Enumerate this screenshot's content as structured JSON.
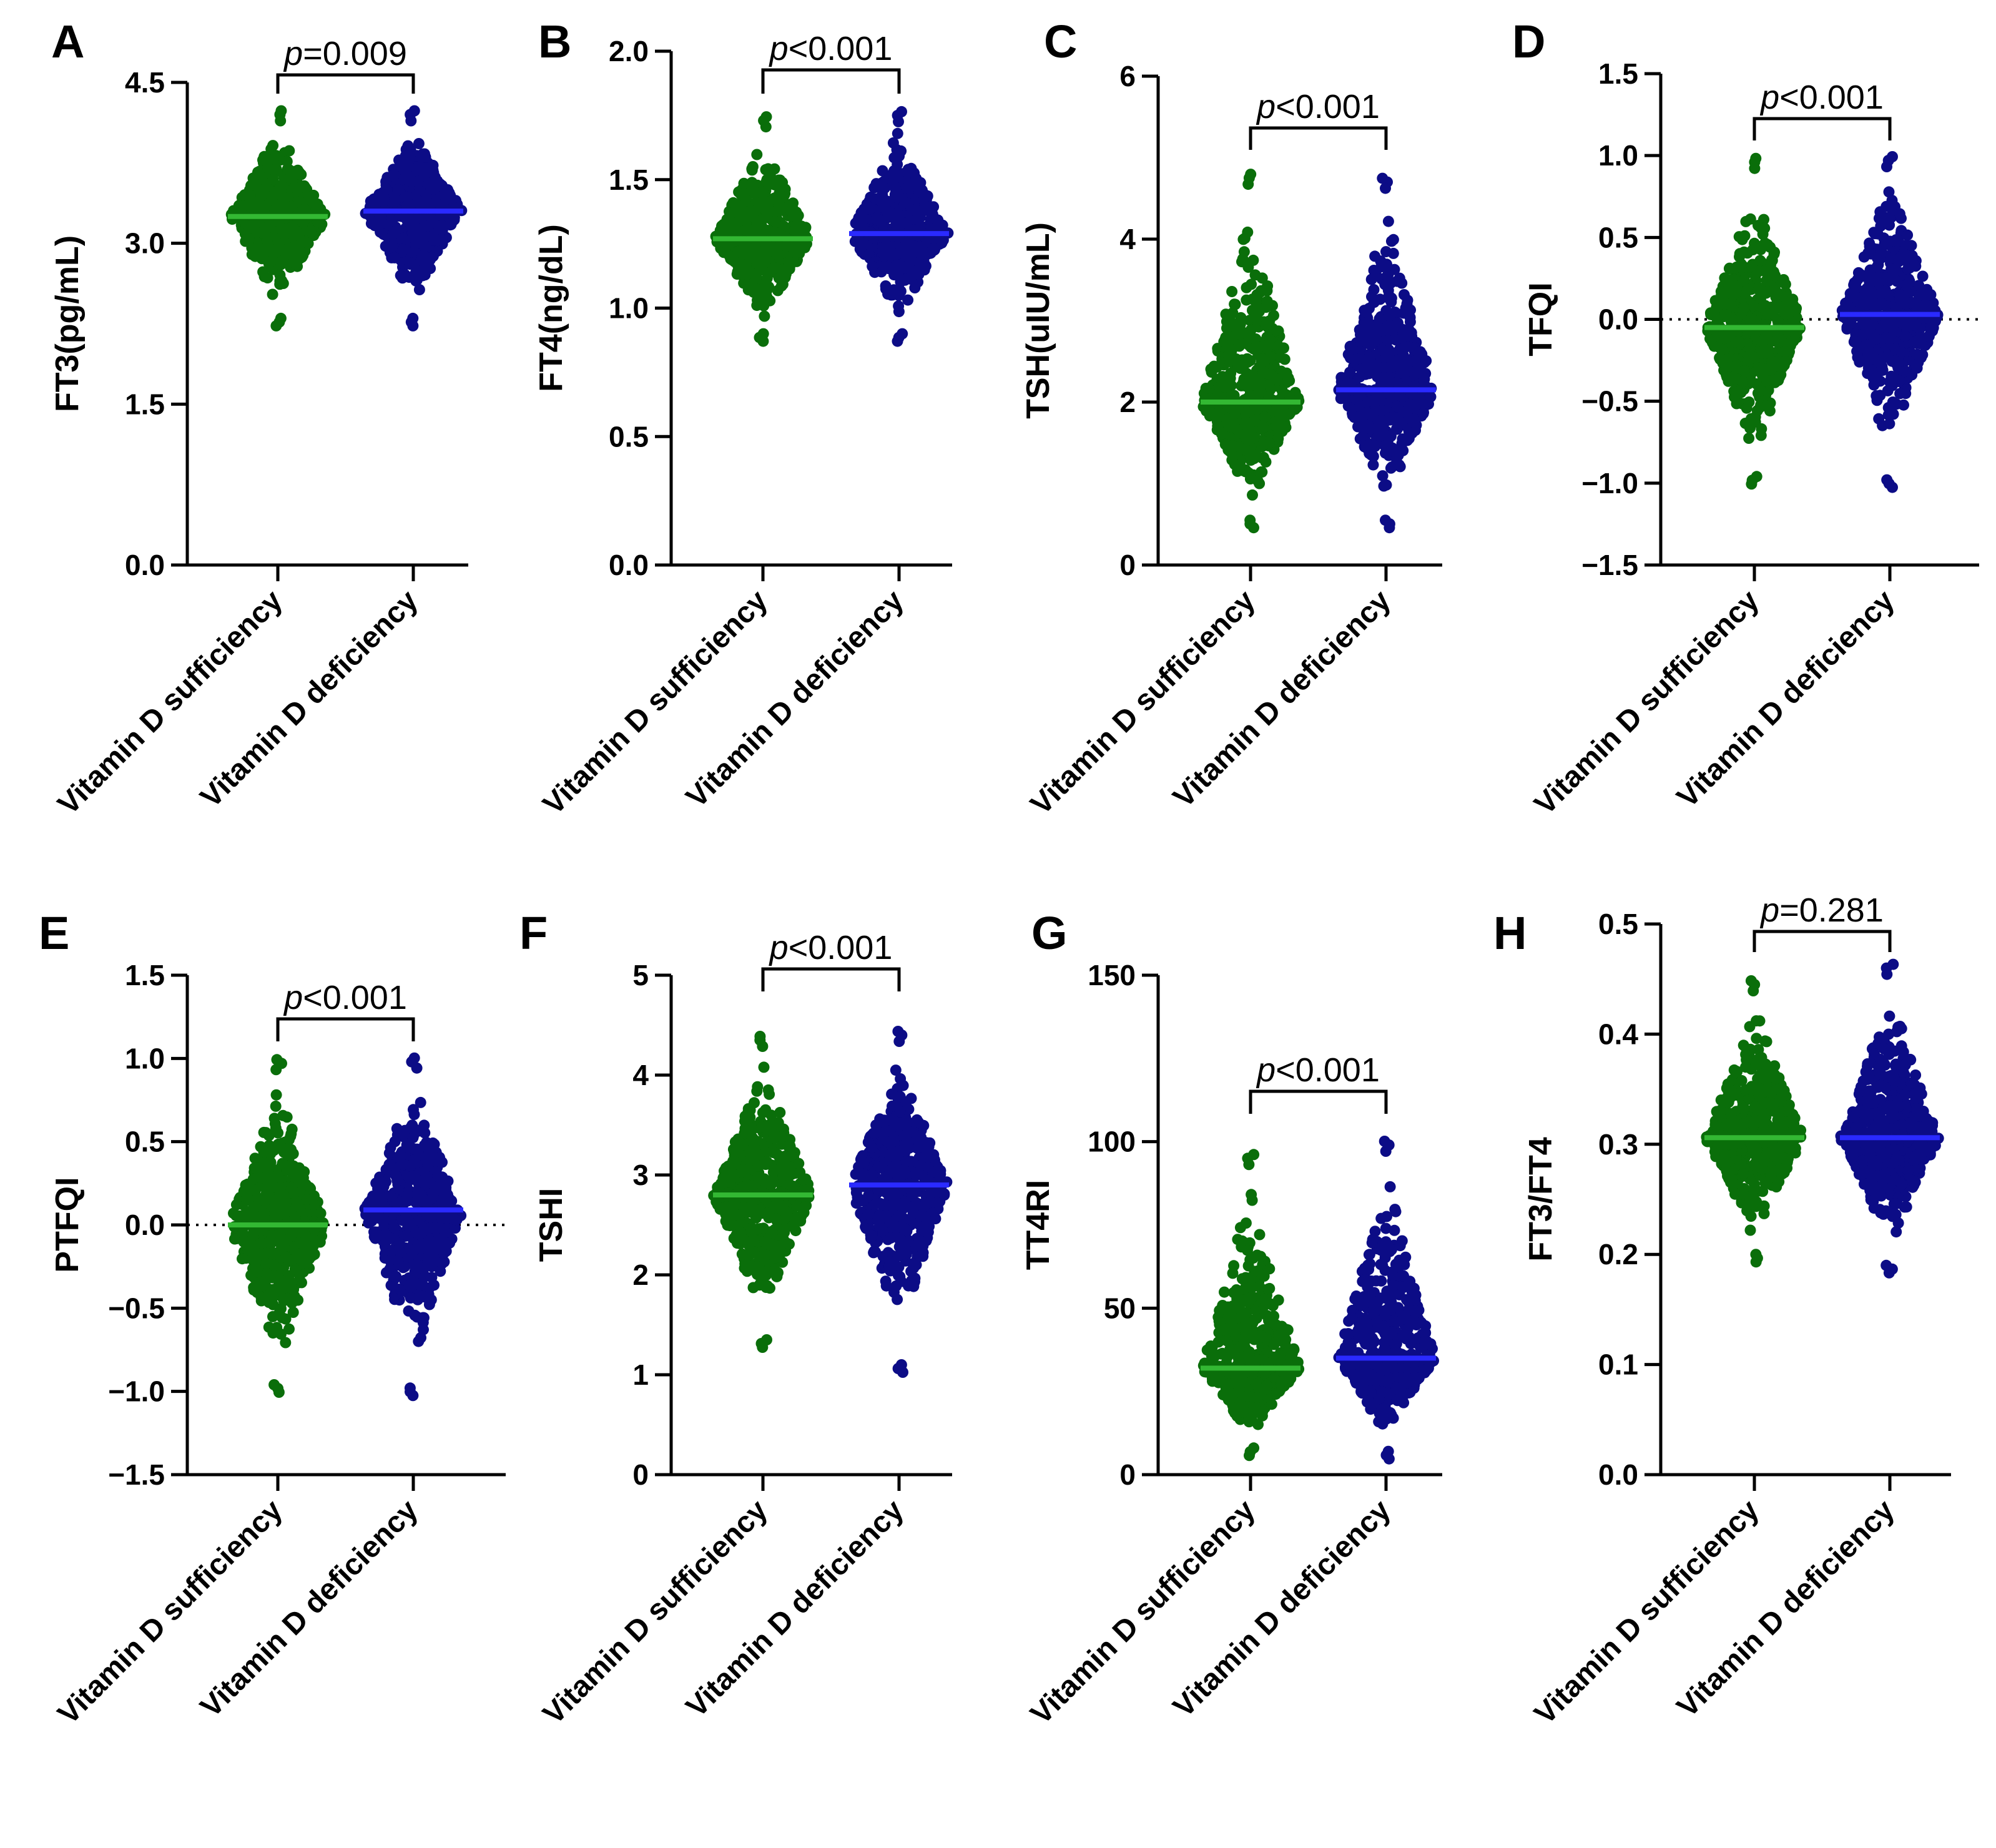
{
  "figure": {
    "colors": {
      "sufficiency": "#0a6e0a",
      "deficiency": "#0c0c86",
      "median_sufficiency": "#33b833",
      "median_deficiency": "#2a2aff"
    }
  },
  "chart_data": [
    {
      "type": "scatter",
      "panel": "A",
      "ylabel": "FT3(pg/mL)",
      "categories": [
        "Vitamin D sufficiency",
        "Vitamin D deficiency"
      ],
      "ylim": [
        0,
        4.5
      ],
      "yticks": [
        0.0,
        1.5,
        3.0,
        4.5
      ],
      "ytick_labels": [
        "0.0",
        "1.5",
        "3.0",
        "4.5"
      ],
      "series": [
        {
          "name": "Vitamin D sufficiency",
          "median": 3.25,
          "min": 2.3,
          "max": 4.2
        },
        {
          "name": "Vitamin D deficiency",
          "median": 3.3,
          "min": 2.3,
          "max": 4.2
        }
      ],
      "pvalue": {
        "prefix": "p",
        "text": "=0.009"
      }
    },
    {
      "type": "scatter",
      "panel": "B",
      "ylabel": "FT4(ng/dL)",
      "categories": [
        "Vitamin D sufficiency",
        "Vitamin D deficiency"
      ],
      "ylim": [
        0,
        2.0
      ],
      "yticks": [
        0.0,
        0.5,
        1.0,
        1.5,
        2.0
      ],
      "ytick_labels": [
        "0.0",
        "0.5",
        "1.0",
        "1.5",
        "2.0"
      ],
      "series": [
        {
          "name": "Vitamin D sufficiency",
          "median": 1.27,
          "min": 0.9,
          "max": 1.73
        },
        {
          "name": "Vitamin D deficiency",
          "median": 1.29,
          "min": 0.9,
          "max": 1.75
        }
      ],
      "pvalue": {
        "prefix": "p",
        "text": "<0.001"
      }
    },
    {
      "type": "scatter",
      "panel": "C",
      "ylabel": "TSH(uIU/mL)",
      "categories": [
        "Vitamin D sufficiency",
        "Vitamin D deficiency"
      ],
      "ylim": [
        0,
        6
      ],
      "yticks": [
        0,
        2,
        4,
        6
      ],
      "ytick_labels": [
        "0",
        "2",
        "4",
        "6"
      ],
      "series": [
        {
          "name": "Vitamin D sufficiency",
          "median": 2.0,
          "min": 0.55,
          "max": 4.75
        },
        {
          "name": "Vitamin D deficiency",
          "median": 2.15,
          "min": 0.55,
          "max": 4.7
        }
      ],
      "pvalue": {
        "prefix": "p",
        "text": "<0.001"
      }
    },
    {
      "type": "scatter",
      "panel": "D",
      "ylabel": "TFQI",
      "categories": [
        "Vitamin D sufficiency",
        "Vitamin D deficiency"
      ],
      "ylim": [
        -1.5,
        1.5
      ],
      "yticks": [
        -1.5,
        -1.0,
        -0.5,
        0.0,
        0.5,
        1.0,
        1.5
      ],
      "ytick_labels": [
        "−1.5",
        "−1.0",
        "−0.5",
        "0.0",
        "0.5",
        "1.0",
        "1.5"
      ],
      "zero_line": true,
      "series": [
        {
          "name": "Vitamin D sufficiency",
          "median": -0.05,
          "min": -0.96,
          "max": 0.96
        },
        {
          "name": "Vitamin D deficiency",
          "median": 0.03,
          "min": -0.98,
          "max": 0.97
        }
      ],
      "pvalue": {
        "prefix": "p",
        "text": "<0.001"
      }
    },
    {
      "type": "scatter",
      "panel": "E",
      "ylabel": "PTFQI",
      "categories": [
        "Vitamin D sufficiency",
        "Vitamin D deficiency"
      ],
      "ylim": [
        -1.5,
        1.5
      ],
      "yticks": [
        -1.5,
        -1.0,
        -0.5,
        0.0,
        0.5,
        1.0,
        1.5
      ],
      "ytick_labels": [
        "−1.5",
        "−1.0",
        "−0.5",
        "0.0",
        "0.5",
        "1.0",
        "1.5"
      ],
      "zero_line": true,
      "series": [
        {
          "name": "Vitamin D sufficiency",
          "median": 0.0,
          "min": -0.96,
          "max": 0.97
        },
        {
          "name": "Vitamin D deficiency",
          "median": 0.09,
          "min": -0.98,
          "max": 0.98
        }
      ],
      "pvalue": {
        "prefix": "p",
        "text": "<0.001"
      }
    },
    {
      "type": "scatter",
      "panel": "F",
      "ylabel": "TSHI",
      "categories": [
        "Vitamin D sufficiency",
        "Vitamin D deficiency"
      ],
      "ylim": [
        0,
        5
      ],
      "yticks": [
        0,
        1,
        2,
        3,
        4,
        5
      ],
      "ytick_labels": [
        "0",
        "1",
        "2",
        "3",
        "4",
        "5"
      ],
      "series": [
        {
          "name": "Vitamin D sufficiency",
          "median": 2.8,
          "min": 1.35,
          "max": 4.35
        },
        {
          "name": "Vitamin D deficiency",
          "median": 2.9,
          "min": 1.1,
          "max": 4.4
        }
      ],
      "pvalue": {
        "prefix": "p",
        "text": "<0.001"
      }
    },
    {
      "type": "scatter",
      "panel": "G",
      "ylabel": "TT4RI",
      "categories": [
        "Vitamin D sufficiency",
        "Vitamin D deficiency"
      ],
      "ylim": [
        0,
        150
      ],
      "yticks": [
        0,
        50,
        100,
        150
      ],
      "ytick_labels": [
        "0",
        "50",
        "100",
        "150"
      ],
      "series": [
        {
          "name": "Vitamin D sufficiency",
          "median": 32,
          "min": 8,
          "max": 95
        },
        {
          "name": "Vitamin D deficiency",
          "median": 35,
          "min": 7,
          "max": 99
        }
      ],
      "pvalue": {
        "prefix": "p",
        "text": "<0.001"
      }
    },
    {
      "type": "scatter",
      "panel": "H",
      "ylabel": "FT3/FT4",
      "categories": [
        "Vitamin D sufficiency",
        "Vitamin D deficiency"
      ],
      "ylim": [
        0,
        0.5
      ],
      "yticks": [
        0.0,
        0.1,
        0.2,
        0.3,
        0.4,
        0.5
      ],
      "ytick_labels": [
        "0.0",
        "0.1",
        "0.2",
        "0.3",
        "0.4",
        "0.5"
      ],
      "series": [
        {
          "name": "Vitamin D sufficiency",
          "median": 0.306,
          "min": 0.2,
          "max": 0.445
        },
        {
          "name": "Vitamin D deficiency",
          "median": 0.306,
          "min": 0.19,
          "max": 0.46
        }
      ],
      "pvalue": {
        "prefix": "p",
        "text": "=0.281"
      }
    }
  ]
}
